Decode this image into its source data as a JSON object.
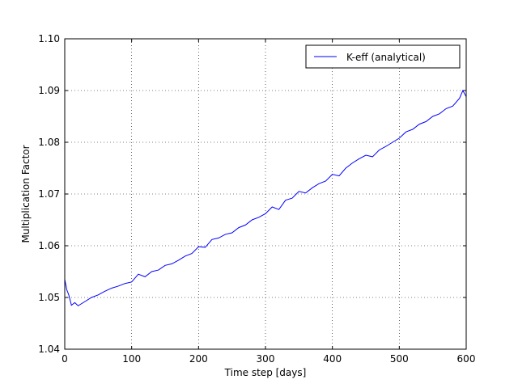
{
  "chart_data": {
    "type": "line",
    "xlabel": "Time step [days]",
    "ylabel": "Multiplication Factor",
    "x": [
      0,
      3,
      6,
      10,
      15,
      20,
      30,
      40,
      50,
      60,
      70,
      80,
      90,
      100,
      110,
      120,
      130,
      140,
      150,
      160,
      170,
      180,
      190,
      200,
      210,
      220,
      230,
      240,
      250,
      260,
      270,
      280,
      290,
      300,
      310,
      320,
      330,
      340,
      350,
      360,
      370,
      380,
      390,
      400,
      410,
      420,
      430,
      440,
      450,
      460,
      470,
      480,
      490,
      500,
      510,
      520,
      530,
      540,
      550,
      560,
      570,
      580,
      590,
      595,
      600
    ],
    "series": [
      {
        "name": "K-eff (analytical)",
        "color": "#0000ff",
        "values": [
          1.0535,
          1.0515,
          1.0505,
          1.0485,
          1.049,
          1.0484,
          1.0492,
          1.05,
          1.0505,
          1.0512,
          1.0518,
          1.0522,
          1.0527,
          1.053,
          1.0545,
          1.054,
          1.055,
          1.0553,
          1.0562,
          1.0565,
          1.0572,
          1.058,
          1.0585,
          1.0598,
          1.0597,
          1.0612,
          1.0615,
          1.0622,
          1.0625,
          1.0635,
          1.064,
          1.065,
          1.0655,
          1.0662,
          1.0675,
          1.067,
          1.0688,
          1.0692,
          1.0705,
          1.0702,
          1.0712,
          1.072,
          1.0725,
          1.0738,
          1.0735,
          1.075,
          1.076,
          1.0768,
          1.0775,
          1.0772,
          1.0785,
          1.0792,
          1.08,
          1.0808,
          1.082,
          1.0825,
          1.0835,
          1.084,
          1.085,
          1.0855,
          1.0865,
          1.087,
          1.0885,
          1.09,
          1.0888
        ]
      }
    ],
    "xlim": [
      0,
      600
    ],
    "xticks": [
      0,
      100,
      200,
      300,
      400,
      500,
      600
    ],
    "ylim": [
      1.04,
      1.1
    ],
    "yticks": [
      1.04,
      1.05,
      1.06,
      1.07,
      1.08,
      1.09,
      {
        "value": 1.1,
        "label": "1.10"
      }
    ],
    "grid": true,
    "legend": "upper right"
  }
}
